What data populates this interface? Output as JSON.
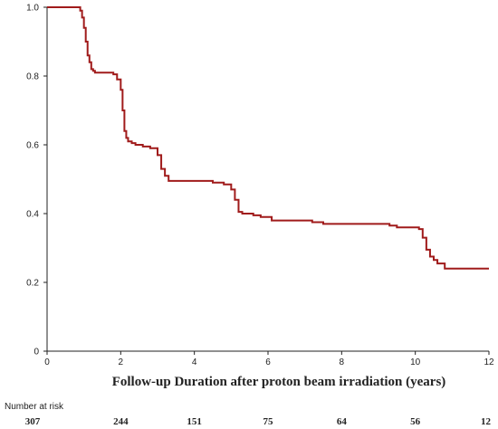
{
  "chart_data": {
    "type": "line",
    "title": "",
    "xlabel": "Follow-up Duration after proton beam irradiation (years)",
    "ylabel": "",
    "xlim": [
      0,
      12
    ],
    "ylim": [
      0,
      1.0
    ],
    "x_ticks": [
      "0",
      "2",
      "4",
      "6",
      "8",
      "10",
      "12"
    ],
    "y_ticks": [
      "0",
      "0.2",
      "0.4",
      "0.6",
      "0.8",
      "1.0"
    ],
    "grid": false,
    "series": [
      {
        "color": "#a01b1b",
        "step": true,
        "x": [
          0,
          0.9,
          0.95,
          1.0,
          1.05,
          1.1,
          1.15,
          1.2,
          1.25,
          1.3,
          1.4,
          1.8,
          1.9,
          2.0,
          2.05,
          2.1,
          2.15,
          2.2,
          2.3,
          2.4,
          2.6,
          2.8,
          3.0,
          3.1,
          3.2,
          3.3,
          4.0,
          4.5,
          4.8,
          5.0,
          5.1,
          5.2,
          5.3,
          5.6,
          5.8,
          6.1,
          7.2,
          7.5,
          9.3,
          9.5,
          10.1,
          10.2,
          10.3,
          10.4,
          10.5,
          10.6,
          10.8,
          12.0
        ],
        "y": [
          1.0,
          0.99,
          0.97,
          0.94,
          0.9,
          0.86,
          0.84,
          0.82,
          0.815,
          0.81,
          0.81,
          0.805,
          0.79,
          0.76,
          0.7,
          0.64,
          0.62,
          0.61,
          0.605,
          0.6,
          0.595,
          0.59,
          0.57,
          0.53,
          0.51,
          0.495,
          0.495,
          0.49,
          0.485,
          0.47,
          0.44,
          0.405,
          0.4,
          0.395,
          0.39,
          0.38,
          0.375,
          0.37,
          0.365,
          0.36,
          0.355,
          0.33,
          0.295,
          0.275,
          0.265,
          0.255,
          0.24,
          0.24
        ]
      }
    ],
    "number_at_risk": {
      "title": "Number at risk",
      "x": [
        0,
        2,
        4,
        6,
        8,
        10,
        12
      ],
      "values": [
        "307",
        "244",
        "151",
        "75",
        "64",
        "56",
        "12"
      ]
    }
  }
}
